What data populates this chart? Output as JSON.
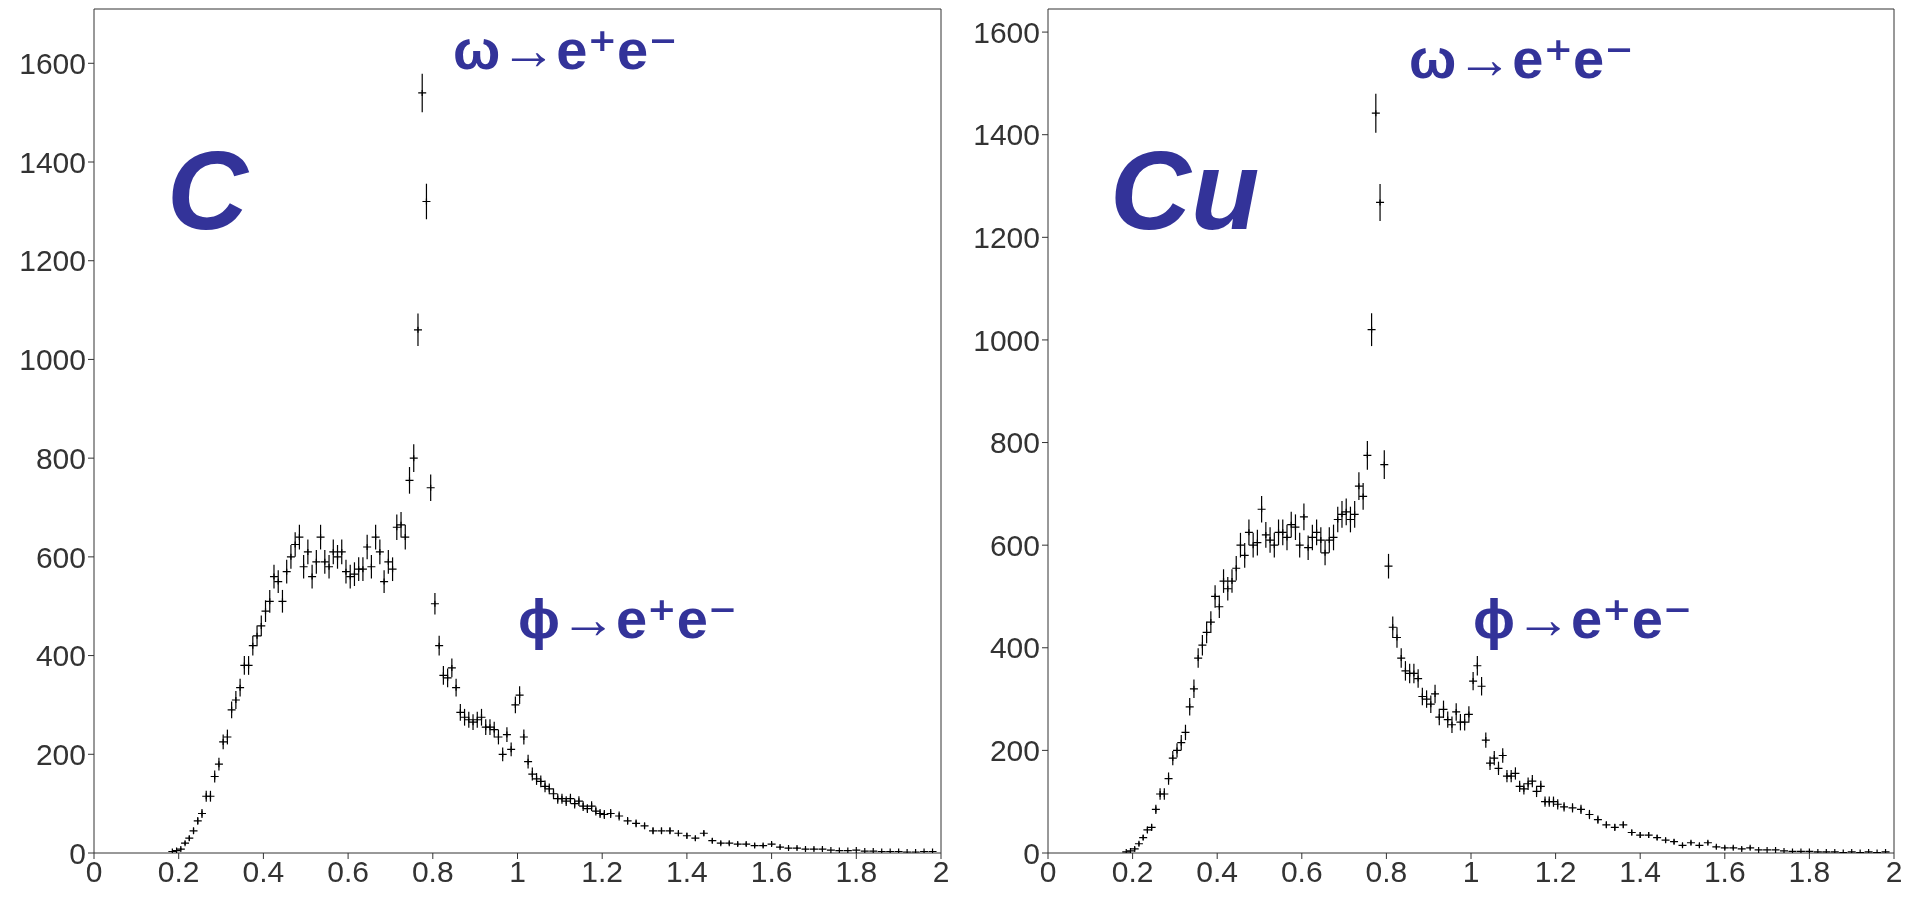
{
  "chart_data": [
    {
      "type": "scatter",
      "title": "C",
      "color": "#000000",
      "marker": "cross",
      "xlim": [
        0,
        2
      ],
      "xticks": [
        0,
        0.2,
        0.4,
        0.6,
        0.8,
        1,
        1.2,
        1.4,
        1.6,
        1.8,
        2
      ],
      "ylim": [
        0,
        1710
      ],
      "yticks": [
        0,
        200,
        400,
        600,
        800,
        1000,
        1200,
        1400,
        1600
      ],
      "annotations": [
        "ω→e⁺e⁻",
        "ϕ→e⁺e⁻"
      ],
      "x": [
        0.185,
        0.195,
        0.205,
        0.215,
        0.225,
        0.235,
        0.245,
        0.255,
        0.265,
        0.275,
        0.285,
        0.295,
        0.305,
        0.315,
        0.325,
        0.335,
        0.345,
        0.355,
        0.365,
        0.375,
        0.385,
        0.395,
        0.405,
        0.415,
        0.425,
        0.435,
        0.445,
        0.455,
        0.465,
        0.475,
        0.485,
        0.495,
        0.505,
        0.515,
        0.525,
        0.535,
        0.545,
        0.555,
        0.565,
        0.575,
        0.585,
        0.595,
        0.605,
        0.615,
        0.625,
        0.635,
        0.645,
        0.655,
        0.665,
        0.675,
        0.685,
        0.695,
        0.705,
        0.715,
        0.725,
        0.735,
        0.745,
        0.755,
        0.765,
        0.775,
        0.785,
        0.795,
        0.805,
        0.815,
        0.825,
        0.835,
        0.845,
        0.855,
        0.865,
        0.875,
        0.885,
        0.895,
        0.905,
        0.915,
        0.925,
        0.935,
        0.945,
        0.955,
        0.965,
        0.975,
        0.985,
        0.995,
        1.005,
        1.015,
        1.025,
        1.035,
        1.045,
        1.055,
        1.065,
        1.075,
        1.085,
        1.095,
        1.105,
        1.115,
        1.125,
        1.135,
        1.145,
        1.155,
        1.165,
        1.175,
        1.185,
        1.195,
        1.205,
        1.22,
        1.24,
        1.26,
        1.28,
        1.3,
        1.32,
        1.34,
        1.36,
        1.38,
        1.4,
        1.42,
        1.44,
        1.46,
        1.48,
        1.5,
        1.52,
        1.54,
        1.56,
        1.58,
        1.6,
        1.62,
        1.64,
        1.66,
        1.68,
        1.7,
        1.72,
        1.74,
        1.76,
        1.78,
        1.8,
        1.82,
        1.84,
        1.86,
        1.88,
        1.9,
        1.92,
        1.94,
        1.96,
        1.98
      ],
      "values": [
        3,
        5,
        8,
        20,
        30,
        45,
        65,
        80,
        115,
        115,
        155,
        180,
        225,
        235,
        290,
        310,
        335,
        380,
        380,
        420,
        440,
        460,
        490,
        510,
        560,
        550,
        510,
        570,
        600,
        625,
        640,
        580,
        610,
        560,
        590,
        640,
        590,
        580,
        610,
        600,
        610,
        570,
        560,
        565,
        575,
        575,
        620,
        580,
        640,
        610,
        550,
        590,
        575,
        660,
        665,
        640,
        755,
        800,
        1060,
        1540,
        1320,
        740,
        505,
        420,
        360,
        355,
        375,
        335,
        285,
        275,
        270,
        265,
        270,
        275,
        255,
        255,
        250,
        235,
        200,
        240,
        210,
        300,
        320,
        235,
        185,
        160,
        150,
        145,
        135,
        130,
        120,
        110,
        110,
        105,
        110,
        100,
        105,
        95,
        90,
        95,
        85,
        80,
        78,
        80,
        75,
        65,
        60,
        55,
        45,
        45,
        45,
        40,
        35,
        30,
        40,
        25,
        20,
        20,
        18,
        18,
        15,
        15,
        18,
        12,
        10,
        10,
        8,
        8,
        8,
        6,
        5,
        5,
        6,
        4,
        4,
        3,
        3,
        3,
        2,
        2,
        3,
        3
      ],
      "errors": [
        null,
        null,
        3,
        4,
        5,
        7,
        8,
        9,
        11,
        11,
        12,
        13,
        15,
        15,
        17,
        18,
        18,
        19,
        19,
        20,
        21,
        21,
        22,
        23,
        24,
        23,
        23,
        24,
        24,
        25,
        25,
        24,
        25,
        24,
        24,
        25,
        24,
        24,
        25,
        24,
        25,
        24,
        24,
        24,
        24,
        24,
        25,
        24,
        25,
        25,
        23,
        24,
        24,
        26,
        26,
        25,
        27,
        28,
        33,
        39,
        36,
        27,
        22,
        20,
        19,
        19,
        19,
        18,
        17,
        17,
        16,
        16,
        16,
        17,
        16,
        16,
        16,
        15,
        14,
        15,
        14,
        17,
        18,
        15,
        14,
        13,
        12,
        12,
        12,
        11,
        11,
        10,
        10,
        10,
        10,
        10,
        10,
        10,
        9,
        10,
        9,
        9,
        9,
        9,
        9,
        8,
        8,
        7,
        7,
        7,
        7,
        6,
        6,
        5,
        6,
        5,
        4,
        4,
        4,
        4,
        4,
        4,
        4,
        3,
        3,
        3,
        3,
        3,
        3,
        null,
        null,
        null,
        null,
        null,
        null,
        null,
        null,
        null,
        null,
        null,
        null,
        null
      ]
    },
    {
      "type": "scatter",
      "title": "Cu",
      "color": "#000000",
      "marker": "cross",
      "xlim": [
        0,
        2
      ],
      "xticks": [
        0,
        0.2,
        0.4,
        0.6,
        0.8,
        1,
        1.2,
        1.4,
        1.6,
        1.8,
        2
      ],
      "ylim": [
        0,
        1645
      ],
      "yticks": [
        0,
        200,
        400,
        600,
        800,
        1000,
        1200,
        1400,
        1600
      ],
      "annotations": [
        "ω→e⁺e⁻",
        "ϕ→e⁺e⁻"
      ],
      "x": [
        0.185,
        0.195,
        0.205,
        0.215,
        0.225,
        0.235,
        0.245,
        0.255,
        0.265,
        0.275,
        0.285,
        0.295,
        0.305,
        0.315,
        0.325,
        0.335,
        0.345,
        0.355,
        0.365,
        0.375,
        0.385,
        0.395,
        0.405,
        0.415,
        0.425,
        0.435,
        0.445,
        0.455,
        0.465,
        0.475,
        0.485,
        0.495,
        0.505,
        0.515,
        0.525,
        0.535,
        0.545,
        0.555,
        0.565,
        0.575,
        0.585,
        0.595,
        0.605,
        0.615,
        0.625,
        0.635,
        0.645,
        0.655,
        0.665,
        0.675,
        0.685,
        0.695,
        0.705,
        0.715,
        0.725,
        0.735,
        0.745,
        0.755,
        0.765,
        0.775,
        0.785,
        0.795,
        0.805,
        0.815,
        0.825,
        0.835,
        0.845,
        0.855,
        0.865,
        0.875,
        0.885,
        0.895,
        0.905,
        0.915,
        0.925,
        0.935,
        0.945,
        0.955,
        0.965,
        0.975,
        0.985,
        0.995,
        1.005,
        1.015,
        1.025,
        1.035,
        1.045,
        1.055,
        1.065,
        1.075,
        1.085,
        1.095,
        1.105,
        1.115,
        1.125,
        1.135,
        1.145,
        1.155,
        1.165,
        1.175,
        1.185,
        1.195,
        1.205,
        1.22,
        1.24,
        1.26,
        1.28,
        1.3,
        1.32,
        1.34,
        1.36,
        1.38,
        1.4,
        1.42,
        1.44,
        1.46,
        1.48,
        1.5,
        1.52,
        1.54,
        1.56,
        1.58,
        1.6,
        1.62,
        1.64,
        1.66,
        1.68,
        1.7,
        1.72,
        1.74,
        1.76,
        1.78,
        1.8,
        1.82,
        1.84,
        1.86,
        1.88,
        1.9,
        1.92,
        1.94,
        1.96,
        1.98
      ],
      "values": [
        2,
        4,
        8,
        18,
        30,
        45,
        50,
        85,
        115,
        115,
        145,
        185,
        200,
        215,
        235,
        285,
        320,
        380,
        405,
        430,
        450,
        500,
        480,
        530,
        515,
        530,
        555,
        600,
        580,
        625,
        600,
        605,
        670,
        620,
        610,
        600,
        625,
        625,
        615,
        640,
        635,
        600,
        655,
        595,
        615,
        625,
        610,
        585,
        610,
        615,
        650,
        660,
        665,
        650,
        660,
        715,
        695,
        775,
        1020,
        1442,
        1268,
        757,
        559,
        440,
        420,
        380,
        355,
        350,
        350,
        340,
        305,
        300,
        290,
        310,
        265,
        280,
        260,
        250,
        275,
        255,
        255,
        270,
        335,
        365,
        325,
        220,
        175,
        185,
        165,
        190,
        150,
        150,
        155,
        130,
        125,
        135,
        140,
        120,
        130,
        100,
        100,
        100,
        95,
        90,
        88,
        85,
        75,
        65,
        55,
        50,
        55,
        40,
        35,
        35,
        30,
        25,
        22,
        15,
        20,
        15,
        20,
        12,
        10,
        10,
        8,
        10,
        6,
        6,
        6,
        4,
        3,
        3,
        3,
        2,
        2,
        2,
        1,
        2,
        1,
        2,
        1,
        2
      ],
      "errors": [
        null,
        null,
        3,
        4,
        5,
        7,
        7,
        9,
        11,
        11,
        12,
        14,
        14,
        15,
        15,
        17,
        18,
        19,
        20,
        21,
        21,
        22,
        22,
        23,
        23,
        23,
        24,
        24,
        24,
        25,
        24,
        25,
        26,
        25,
        25,
        24,
        25,
        25,
        25,
        25,
        25,
        24,
        26,
        24,
        25,
        25,
        25,
        24,
        25,
        25,
        25,
        26,
        26,
        25,
        26,
        27,
        26,
        28,
        32,
        38,
        36,
        28,
        24,
        21,
        20,
        19,
        19,
        19,
        19,
        18,
        17,
        17,
        17,
        18,
        16,
        17,
        16,
        16,
        17,
        16,
        16,
        16,
        18,
        19,
        18,
        15,
        13,
        14,
        13,
        14,
        12,
        12,
        12,
        11,
        11,
        12,
        12,
        11,
        11,
        10,
        10,
        10,
        10,
        9,
        9,
        9,
        9,
        8,
        7,
        7,
        7,
        6,
        6,
        6,
        5,
        5,
        5,
        4,
        4,
        4,
        4,
        3,
        3,
        3,
        3,
        3,
        null,
        null,
        null,
        null,
        null,
        null,
        null,
        null,
        null,
        null,
        null,
        null,
        null,
        null,
        null,
        null
      ]
    }
  ]
}
